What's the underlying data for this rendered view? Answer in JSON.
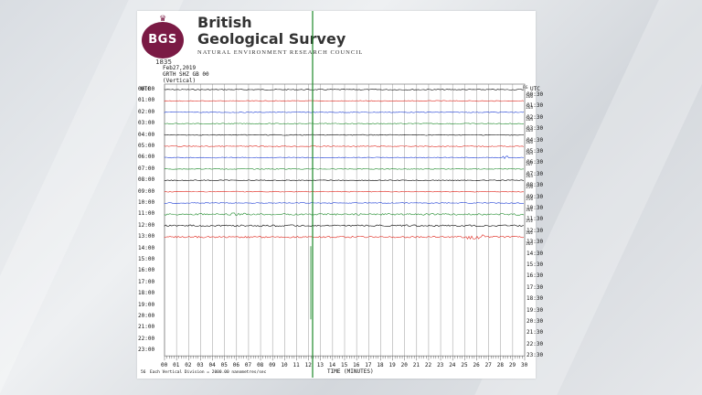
{
  "header": {
    "org_line1": "British",
    "org_line2": "Geological Survey",
    "org_sub": "NATURAL ENVIRONMENT RESEARCH COUNCIL",
    "logo_text": "BGS",
    "logo_year": "1835"
  },
  "meta": {
    "date": "Feb27,2019",
    "station": "GRTH SHZ GB 00",
    "component": "(Vertical)"
  },
  "axis": {
    "utc_left": "UTC",
    "utc_right": "UTC",
    "left_times": [
      "00:00",
      "01:00",
      "02:00",
      "03:00",
      "04:00",
      "05:00",
      "06:00",
      "07:00",
      "08:00",
      "09:00",
      "10:00",
      "11:00",
      "12:00",
      "13:00",
      "14:00",
      "15:00",
      "16:00",
      "17:00",
      "18:00",
      "19:00",
      "20:00",
      "21:00",
      "22:00",
      "23:00"
    ],
    "right_times": [
      "00:30",
      "01:30",
      "02:30",
      "03:30",
      "04:30",
      "05:30",
      "06:30",
      "07:30",
      "08:30",
      "09:30",
      "10:30",
      "11:30",
      "12:30",
      "13:30",
      "14:30",
      "15:30",
      "16:30",
      "17:30",
      "18:30",
      "19:30",
      "20:30",
      "21:30",
      "22:30",
      "23:30"
    ],
    "ranges_header": "RG",
    "ranges": [
      "166",
      "163",
      "164",
      "163",
      "166",
      "164",
      "167",
      "163",
      "156",
      "156",
      "161",
      "152",
      "162",
      "165"
    ],
    "minute_ticks": [
      "00",
      "01",
      "02",
      "03",
      "04",
      "05",
      "06",
      "07",
      "08",
      "09",
      "10",
      "11",
      "12",
      "13",
      "14",
      "15",
      "16",
      "17",
      "18",
      "19",
      "20",
      "21",
      "22",
      "23",
      "24",
      "25",
      "26",
      "27",
      "28",
      "29",
      "30"
    ],
    "x_title": "TIME (MINUTES)"
  },
  "footer": {
    "mark": "56",
    "note": "Each Vertical Division = 2000.00 nanometres/sec"
  },
  "trace_colors": [
    "#000000",
    "#e0261c",
    "#1f3fd6",
    "#1d8a2a"
  ]
}
